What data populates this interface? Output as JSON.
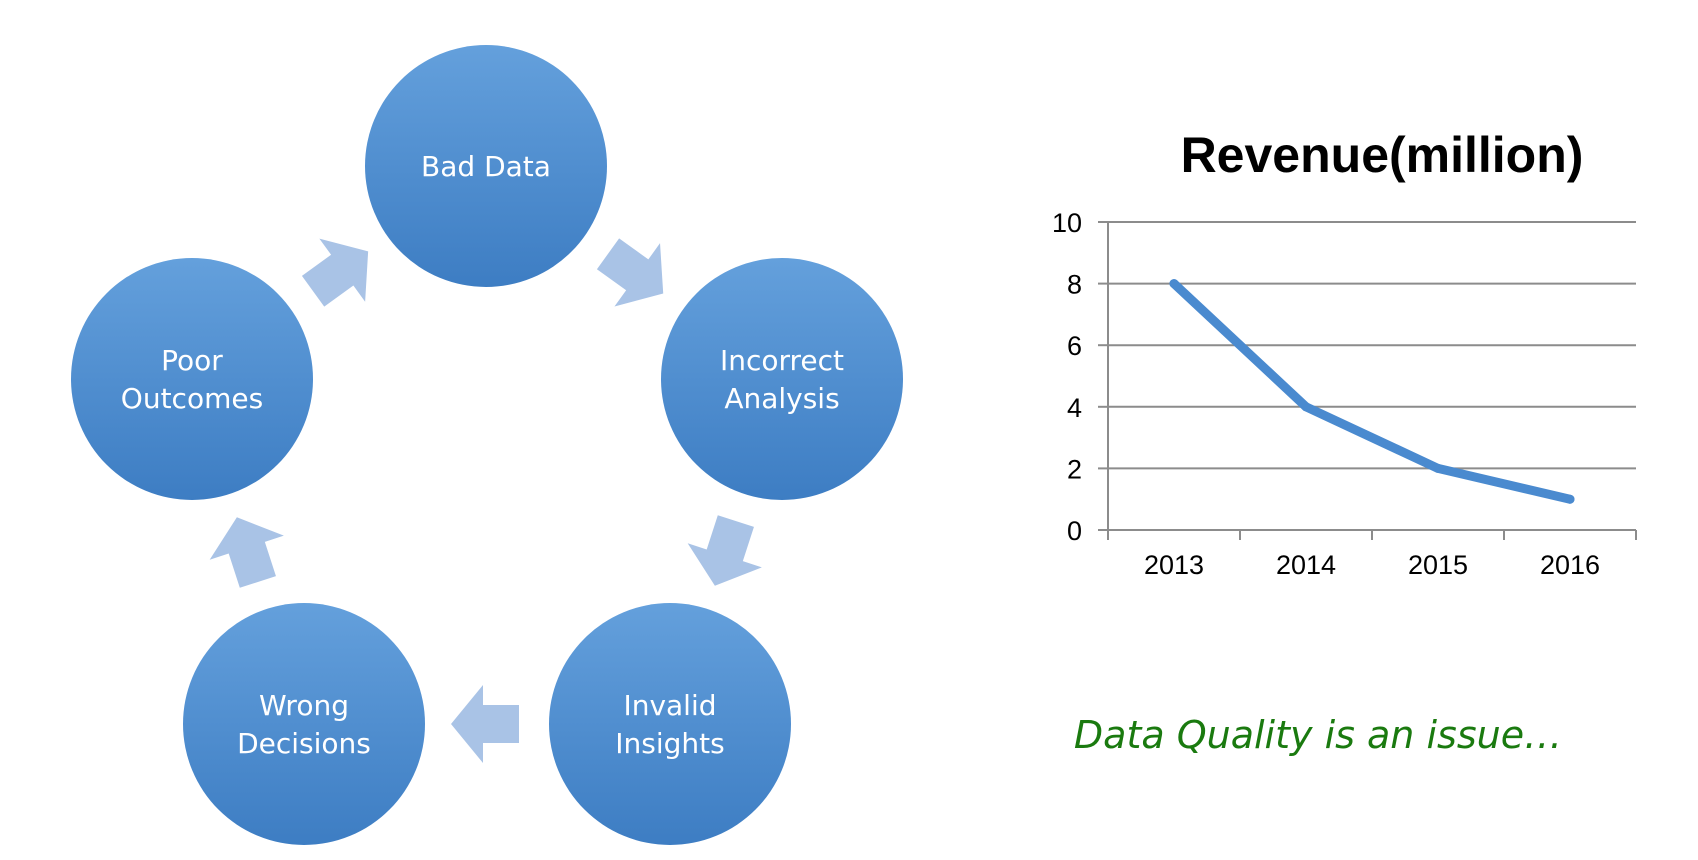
{
  "cycle": {
    "nodes": [
      {
        "id": "bad-data",
        "lines": [
          "Bad Data"
        ]
      },
      {
        "id": "incorrect-analysis",
        "lines": [
          "Incorrect",
          "Analysis"
        ]
      },
      {
        "id": "invalid-insights",
        "lines": [
          "Invalid",
          "Insights"
        ]
      },
      {
        "id": "wrong-decisions",
        "lines": [
          "Wrong",
          "Decisions"
        ]
      },
      {
        "id": "poor-outcomes",
        "lines": [
          "Poor",
          "Outcomes"
        ]
      }
    ],
    "colors": {
      "circle_top": "#64A0DC",
      "circle_bottom": "#3D7DC3",
      "arrow": "#A9C3E6"
    }
  },
  "chart_data": {
    "type": "line",
    "title": "Revenue(million)",
    "categories": [
      "2013",
      "2014",
      "2015",
      "2016"
    ],
    "series": [
      {
        "values": [
          8,
          4,
          2,
          1
        ]
      }
    ],
    "ylim": [
      0,
      10
    ],
    "yticks": [
      0,
      2,
      4,
      6,
      8,
      10
    ],
    "grid": true,
    "line_color": "#4A8ACF",
    "grid_color": "#8C8C8C"
  },
  "caption": {
    "text": "Data Quality is an issue…",
    "color": "#1A7A0F"
  }
}
